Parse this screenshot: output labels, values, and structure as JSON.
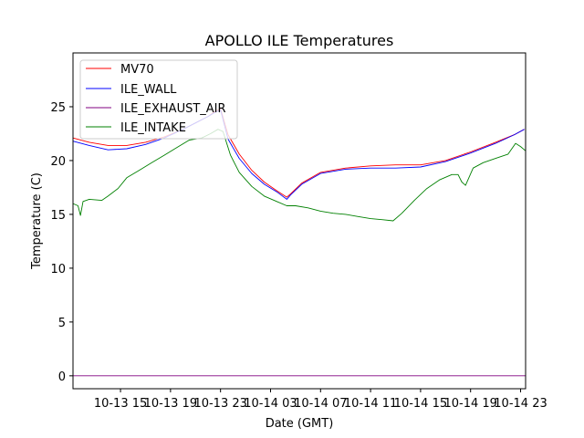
{
  "chart_data": {
    "type": "line",
    "title": "APOLLO ILE Temperatures",
    "xlabel": "Date (GMT)",
    "ylabel": "Temperature (C)",
    "x_unit": "hours since 10-13 00:00 GMT",
    "xlim": [
      11.2,
      47.4
    ],
    "ylim": [
      -1.2,
      30
    ],
    "grid": false,
    "legend_position": "top-left",
    "x_ticks": [
      {
        "value": 15,
        "label": "10-13 15"
      },
      {
        "value": 19,
        "label": "10-13 19"
      },
      {
        "value": 23,
        "label": "10-13 23"
      },
      {
        "value": 27,
        "label": "10-14 03"
      },
      {
        "value": 31,
        "label": "10-14 07"
      },
      {
        "value": 35,
        "label": "10-14 11"
      },
      {
        "value": 39,
        "label": "10-14 15"
      },
      {
        "value": 43,
        "label": "10-14 19"
      },
      {
        "value": 47,
        "label": "10-14 23"
      }
    ],
    "y_ticks": [
      0,
      5,
      10,
      15,
      20,
      25
    ],
    "series": [
      {
        "name": "MV70",
        "color": "#ff0000",
        "x": [
          11.2,
          12.5,
          14,
          15.5,
          17,
          18.5,
          20,
          21,
          22,
          22.6,
          23.0,
          23.6,
          24.5,
          25.5,
          26.5,
          27.5,
          28.3,
          28.6,
          29.5,
          31,
          33,
          35,
          37,
          39,
          41,
          43,
          45,
          46.5,
          47.3
        ],
        "y": [
          22.1,
          21.7,
          21.4,
          21.4,
          21.7,
          22.2,
          22.9,
          23.5,
          24.1,
          24.6,
          24.8,
          22.4,
          20.6,
          19.1,
          18.0,
          17.2,
          16.6,
          16.9,
          17.9,
          18.9,
          19.3,
          19.5,
          19.6,
          19.6,
          20.0,
          20.8,
          21.7,
          22.4,
          22.9
        ]
      },
      {
        "name": "ILE_WALL",
        "color": "#0000ff",
        "x": [
          11.2,
          12.5,
          14,
          15.5,
          17,
          18.5,
          20,
          21,
          22,
          22.6,
          23.0,
          23.6,
          24.5,
          25.5,
          26.5,
          27.5,
          28.3,
          28.6,
          29.5,
          31,
          33,
          35,
          37,
          39,
          41,
          43,
          45,
          46.5,
          47.3
        ],
        "y": [
          21.8,
          21.4,
          21.0,
          21.1,
          21.5,
          22.1,
          22.9,
          23.5,
          24.1,
          24.5,
          24.7,
          22.0,
          20.2,
          18.8,
          17.8,
          17.1,
          16.4,
          16.8,
          17.8,
          18.8,
          19.2,
          19.3,
          19.3,
          19.4,
          19.9,
          20.7,
          21.6,
          22.4,
          22.9
        ]
      },
      {
        "name": "ILE_EXHAUST_AIR",
        "color": "#800080",
        "x": [
          11.2,
          47.4
        ],
        "y": [
          0.0,
          0.0
        ]
      },
      {
        "name": "ILE_INTAKE",
        "color": "#008000",
        "x": [
          11.2,
          11.6,
          11.8,
          12.0,
          12.5,
          13.5,
          14.0,
          14.8,
          15.5,
          16.5,
          17.5,
          18.5,
          19.5,
          20.5,
          21.5,
          22.2,
          22.8,
          23.2,
          23.8,
          24.5,
          25.5,
          26.5,
          27.5,
          28.3,
          29.0,
          30.0,
          31.0,
          32.0,
          33.0,
          34.0,
          35.0,
          36.0,
          36.8,
          37.5,
          38.5,
          39.5,
          40.5,
          41.5,
          42.0,
          42.3,
          42.6,
          43.2,
          44.0,
          45.0,
          46.0,
          46.6,
          47.0,
          47.4
        ],
        "y": [
          16.0,
          15.8,
          14.9,
          16.2,
          16.4,
          16.3,
          16.7,
          17.4,
          18.4,
          19.1,
          19.8,
          20.5,
          21.2,
          21.9,
          22.1,
          22.5,
          22.9,
          22.7,
          20.5,
          18.9,
          17.6,
          16.7,
          16.2,
          15.8,
          15.8,
          15.6,
          15.3,
          15.1,
          15.0,
          14.8,
          14.6,
          14.5,
          14.4,
          15.1,
          16.3,
          17.4,
          18.2,
          18.7,
          18.7,
          18.0,
          17.7,
          19.3,
          19.8,
          20.2,
          20.6,
          21.6,
          21.3,
          20.9
        ]
      }
    ]
  }
}
